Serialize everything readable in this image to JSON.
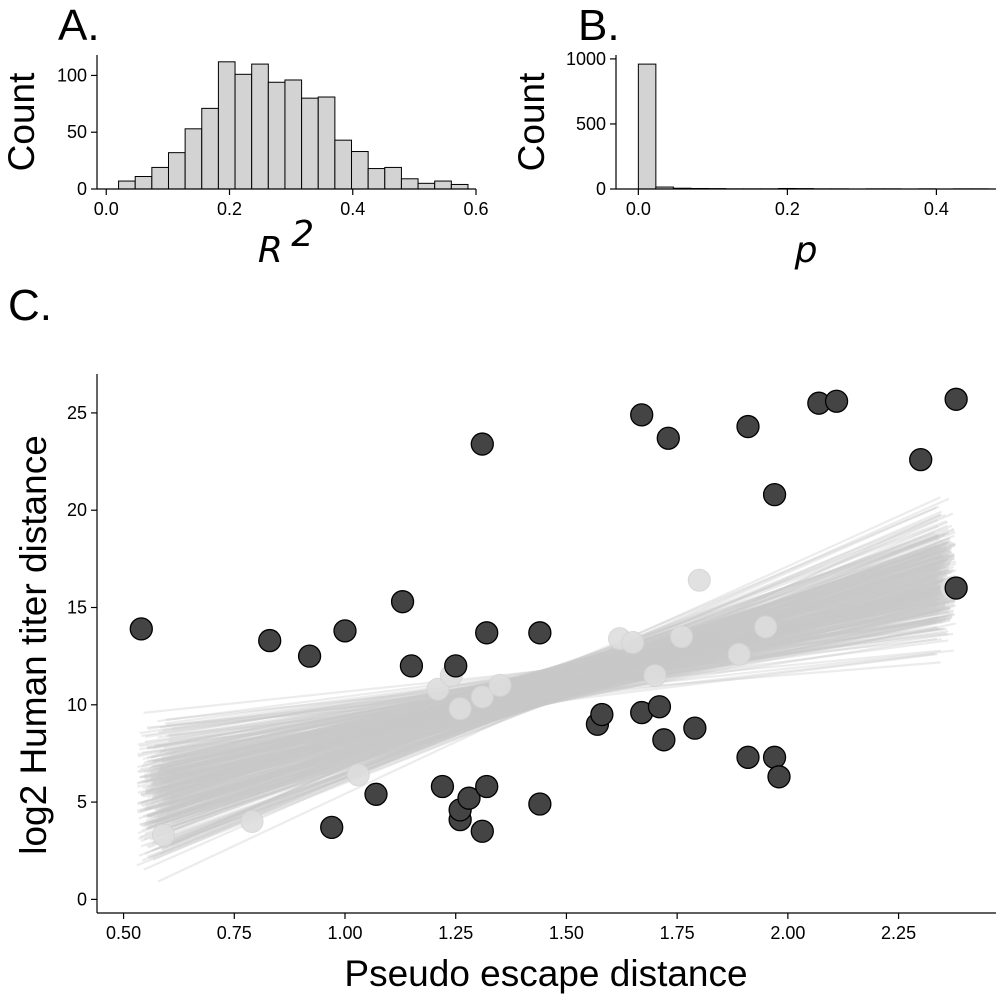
{
  "chart_data": [
    {
      "panel": "A.",
      "type": "bar",
      "xlabel": "R",
      "xlabel_sup": "2",
      "ylabel": "Count",
      "xlim": [
        -0.015,
        0.6
      ],
      "ylim": [
        0,
        118
      ],
      "xticks": [
        "0.0",
        "0.2",
        "0.4",
        "0.6"
      ],
      "xtick_values": [
        0,
        0.2,
        0.4,
        0.6
      ],
      "yticks": [
        "0",
        "50",
        "100"
      ],
      "ytick_values": [
        0,
        50,
        100
      ],
      "bin_edges": [
        0.02,
        0.047,
        0.074,
        0.101,
        0.128,
        0.155,
        0.182,
        0.209,
        0.236,
        0.263,
        0.29,
        0.317,
        0.344,
        0.371,
        0.398,
        0.425,
        0.452,
        0.479,
        0.506,
        0.533,
        0.56,
        0.587
      ],
      "values": [
        7,
        11,
        19,
        32,
        53,
        71,
        112,
        101,
        110,
        94,
        96,
        80,
        81,
        43,
        33,
        18,
        19,
        9,
        5,
        7,
        4
      ]
    },
    {
      "panel": "B.",
      "type": "bar",
      "xlabel": "p",
      "ylabel": "Count",
      "xlim": [
        -0.03,
        0.48
      ],
      "ylim": [
        0,
        1030
      ],
      "xticks": [
        "0.0",
        "0.2",
        "0.4"
      ],
      "xtick_values": [
        0,
        0.2,
        0.4
      ],
      "yticks": [
        "0",
        "500",
        "1000"
      ],
      "ytick_values": [
        0,
        500,
        1000
      ],
      "bin_edges": [
        0.0,
        0.0235,
        0.047,
        0.0705,
        0.094,
        0.1175,
        0.141,
        0.1645,
        0.188,
        0.2115,
        0.235,
        0.2585,
        0.282,
        0.3055,
        0.329,
        0.3525,
        0.376,
        0.3995,
        0.423,
        0.4465,
        0.47
      ],
      "values": [
        960,
        15,
        6,
        4,
        3,
        1,
        1,
        1,
        4,
        3,
        1,
        1,
        0,
        1,
        1,
        0,
        1,
        0,
        1,
        1
      ]
    },
    {
      "panel": "C.",
      "type": "scatter",
      "xlabel": "Pseudo escape distance",
      "ylabel": "log2 Human titer distance",
      "xlim": [
        0.44,
        2.47
      ],
      "ylim": [
        -0.7,
        27
      ],
      "xticks": [
        "0.50",
        "0.75",
        "1.00",
        "1.25",
        "1.50",
        "1.75",
        "2.00",
        "2.25"
      ],
      "xtick_values": [
        0.5,
        0.75,
        1.0,
        1.25,
        1.5,
        1.75,
        2.0,
        2.25
      ],
      "yticks": [
        "0",
        "5",
        "10",
        "15",
        "20",
        "25"
      ],
      "ytick_values": [
        0,
        5,
        10,
        15,
        20,
        25
      ],
      "points_dark": [
        [
          0.54,
          13.9
        ],
        [
          0.83,
          13.3
        ],
        [
          0.92,
          12.5
        ],
        [
          1.0,
          13.8
        ],
        [
          1.13,
          15.3
        ],
        [
          1.15,
          12.0
        ],
        [
          0.97,
          3.7
        ],
        [
          1.07,
          5.4
        ],
        [
          1.22,
          5.8
        ],
        [
          1.25,
          12.0
        ],
        [
          1.26,
          4.1
        ],
        [
          1.26,
          4.6
        ],
        [
          1.28,
          5.2
        ],
        [
          1.31,
          3.5
        ],
        [
          1.32,
          5.8
        ],
        [
          1.31,
          23.4
        ],
        [
          1.32,
          13.7
        ],
        [
          1.44,
          13.7
        ],
        [
          1.44,
          4.9
        ],
        [
          1.57,
          9.0
        ],
        [
          1.58,
          9.5
        ],
        [
          1.67,
          9.6
        ],
        [
          1.71,
          9.9
        ],
        [
          1.72,
          8.2
        ],
        [
          1.79,
          8.8
        ],
        [
          1.67,
          24.9
        ],
        [
          1.73,
          23.7
        ],
        [
          1.91,
          24.3
        ],
        [
          1.97,
          20.8
        ],
        [
          1.91,
          7.3
        ],
        [
          1.97,
          7.3
        ],
        [
          1.98,
          6.3
        ],
        [
          2.07,
          25.5
        ],
        [
          2.11,
          25.6
        ],
        [
          2.38,
          25.7
        ],
        [
          2.38,
          16.0
        ],
        [
          2.3,
          22.6
        ]
      ],
      "points_light": [
        [
          0.59,
          3.3
        ],
        [
          0.79,
          4.0
        ],
        [
          1.03,
          6.4
        ],
        [
          1.21,
          10.8
        ],
        [
          1.24,
          11.5
        ],
        [
          1.26,
          9.8
        ],
        [
          1.31,
          10.4
        ],
        [
          1.35,
          11.0
        ],
        [
          1.62,
          13.4
        ],
        [
          1.65,
          13.2
        ],
        [
          1.76,
          13.5
        ],
        [
          1.8,
          16.4
        ],
        [
          1.7,
          11.5
        ],
        [
          1.89,
          12.6
        ],
        [
          1.95,
          14.0
        ],
        [
          2.37,
          16.0
        ]
      ],
      "fit_band": {
        "count": 340,
        "x_range": [
          0.53,
          2.38
        ],
        "intercept_range": [
          3.0,
          10.8
        ],
        "slope_range": [
          1.2,
          11.2
        ]
      }
    }
  ]
}
